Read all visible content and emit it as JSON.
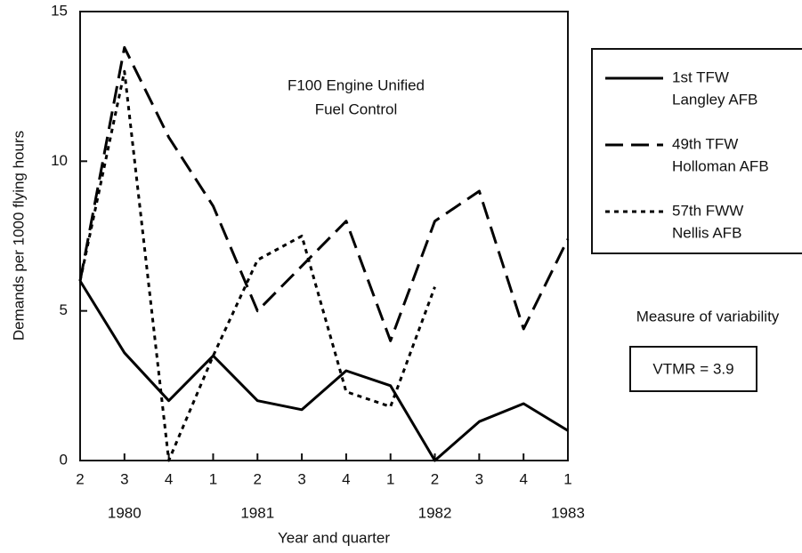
{
  "chart_data": {
    "type": "line",
    "title": [
      "F100 Engine Unified",
      "Fuel Control"
    ],
    "x_label": "Year and quarter",
    "y_label": "Demands per 1000  flying hours",
    "categories": [
      "2",
      "3",
      "4",
      "1",
      "2",
      "3",
      "4",
      "1",
      "2",
      "3",
      "4",
      "1"
    ],
    "year_labels": [
      {
        "label": "1980",
        "category": 1
      },
      {
        "label": "1981",
        "category": 4
      },
      {
        "label": "1982",
        "category": 8
      },
      {
        "label": "1983",
        "category": 11
      }
    ],
    "ylim": [
      0,
      15
    ],
    "yticks": [
      0,
      5,
      10,
      15
    ],
    "series": [
      {
        "name": [
          "1st TFW",
          "Langley AFB"
        ],
        "color": "#000000",
        "style": "solid",
        "values": [
          6,
          3.6,
          2,
          3.5,
          2,
          1.7,
          3,
          2.5,
          0,
          1.3,
          1.9,
          1
        ]
      },
      {
        "name": [
          "49th TFW",
          "Holloman AFB"
        ],
        "color": "#000000",
        "style": "dashed",
        "values": [
          6,
          13.8,
          10.8,
          8.5,
          5,
          6.5,
          8,
          4,
          8,
          9,
          4.4,
          7.4
        ]
      },
      {
        "name": [
          "57th FWW",
          "Nellis AFB"
        ],
        "color": "#000000",
        "style": "dotted",
        "values": [
          6,
          13,
          0,
          3.5,
          6.7,
          7.5,
          2.3,
          1.8,
          5.8,
          null,
          null,
          null
        ]
      }
    ],
    "annotations": [
      "Measure of variability",
      "VTMR = 3.9"
    ]
  }
}
